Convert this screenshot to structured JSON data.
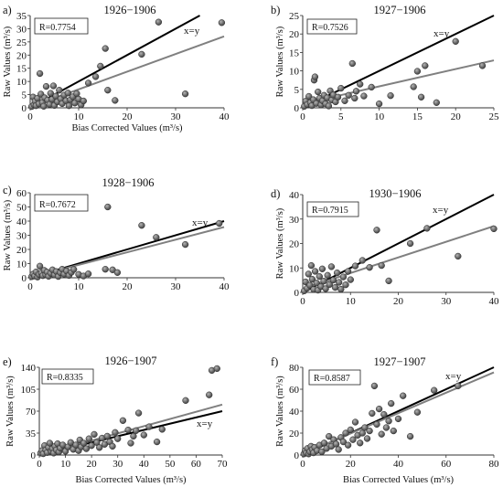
{
  "chart_data": [
    {
      "type": "scatter",
      "panel_label": "a)",
      "title": "1926−1906",
      "xlabel": "Bias Corrected Values (m³/s)",
      "ylabel": "Raw Values (m³/s)",
      "xlim": [
        0,
        40
      ],
      "ylim": [
        0,
        35
      ],
      "xticks": [
        0,
        10,
        20,
        30,
        40
      ],
      "yticks": [
        0,
        5,
        10,
        15,
        20,
        25,
        30,
        35
      ],
      "r_label": "R=0.7754",
      "identity_label": "x=y",
      "trend": {
        "slope": 0.67,
        "intercept": 0.3
      },
      "points": [
        [
          0.3,
          0.5
        ],
        [
          0.6,
          4.1
        ],
        [
          0.8,
          1.2
        ],
        [
          1,
          2.5
        ],
        [
          1.2,
          0.8
        ],
        [
          1.5,
          3.6
        ],
        [
          1.8,
          1.5
        ],
        [
          2,
          13
        ],
        [
          2.2,
          5.2
        ],
        [
          2.5,
          2
        ],
        [
          2.8,
          0.6
        ],
        [
          3,
          3.8
        ],
        [
          3.3,
          8.1
        ],
        [
          3.6,
          2.9
        ],
        [
          4,
          1.3
        ],
        [
          4.2,
          5.5
        ],
        [
          4.5,
          3.2
        ],
        [
          4.8,
          8.3
        ],
        [
          5,
          0.9
        ],
        [
          5.3,
          4.4
        ],
        [
          5.6,
          2.3
        ],
        [
          6,
          6.7
        ],
        [
          6.3,
          3.4
        ],
        [
          6.6,
          1.6
        ],
        [
          7,
          4.8
        ],
        [
          7.4,
          2.7
        ],
        [
          7.8,
          5.6
        ],
        [
          8,
          0.8
        ],
        [
          8.3,
          3.1
        ],
        [
          8.8,
          4.2
        ],
        [
          9.2,
          1.8
        ],
        [
          9.6,
          5.4
        ],
        [
          10,
          3.3
        ],
        [
          10.5,
          1.1
        ],
        [
          11,
          2.6
        ],
        [
          12,
          9.4
        ],
        [
          13.5,
          11.8
        ],
        [
          14.5,
          15.8
        ],
        [
          15.5,
          22.5
        ],
        [
          16,
          6.7
        ],
        [
          17.5,
          2.8
        ],
        [
          23,
          20.3
        ],
        [
          26.5,
          32.5
        ],
        [
          32,
          5.3
        ],
        [
          39.5,
          32.3
        ]
      ]
    },
    {
      "type": "scatter",
      "panel_label": "b)",
      "title": "1927−1906",
      "xlabel": "Bias Corrected Values (m³/s)",
      "ylabel": "Raw Values (m³/s)",
      "xlim": [
        0,
        25
      ],
      "ylim": [
        0,
        25
      ],
      "xticks": [
        0,
        5,
        10,
        15,
        20,
        25
      ],
      "yticks": [
        0,
        5,
        10,
        15,
        20,
        25
      ],
      "r_label": "R=0.7526",
      "identity_label": "x=y",
      "trend": {
        "slope": 0.47,
        "intercept": 1.1
      },
      "points": [
        [
          0.2,
          0.4
        ],
        [
          0.4,
          1.8
        ],
        [
          0.6,
          0.9
        ],
        [
          0.8,
          3.1
        ],
        [
          1,
          1.4
        ],
        [
          1.2,
          0.6
        ],
        [
          1.4,
          2.2
        ],
        [
          1.5,
          7.5
        ],
        [
          1.6,
          8.4
        ],
        [
          1.8,
          1.2
        ],
        [
          2,
          4.3
        ],
        [
          2.2,
          2.6
        ],
        [
          2.4,
          0.8
        ],
        [
          2.6,
          1.9
        ],
        [
          2.8,
          3.4
        ],
        [
          3,
          1.1
        ],
        [
          3.2,
          2.7
        ],
        [
          3.4,
          0.5
        ],
        [
          3.6,
          4.6
        ],
        [
          3.8,
          2.1
        ],
        [
          4,
          3.5
        ],
        [
          4.3,
          1.6
        ],
        [
          4.6,
          2.9
        ],
        [
          5,
          5.3
        ],
        [
          5.5,
          1.9
        ],
        [
          6,
          3.4
        ],
        [
          6.5,
          12
        ],
        [
          6.8,
          2.6
        ],
        [
          7,
          4.5
        ],
        [
          7.5,
          6.4
        ],
        [
          8,
          3.2
        ],
        [
          9,
          5.6
        ],
        [
          10,
          1.1
        ],
        [
          11.5,
          3.3
        ],
        [
          14.5,
          5.7
        ],
        [
          15,
          9.9
        ],
        [
          15.5,
          2.9
        ],
        [
          16,
          11.4
        ],
        [
          17.5,
          1.4
        ],
        [
          20,
          18
        ],
        [
          23.5,
          11.4
        ]
      ]
    },
    {
      "type": "scatter",
      "panel_label": "c)",
      "title": "1928−1906",
      "xlabel": "",
      "ylabel": "Raw Values (m³/s)",
      "xlim": [
        0,
        40
      ],
      "ylim": [
        0,
        60
      ],
      "xticks": [
        0,
        10,
        20,
        30,
        40
      ],
      "yticks": [
        0,
        10,
        20,
        30,
        40,
        50,
        60
      ],
      "r_label": "R=0.7672",
      "identity_label": "x=y",
      "trend": {
        "slope": 0.89,
        "intercept": 0.2
      },
      "points": [
        [
          0.3,
          0.8
        ],
        [
          0.6,
          2.6
        ],
        [
          0.9,
          1.2
        ],
        [
          1.2,
          4.1
        ],
        [
          1.5,
          0.5
        ],
        [
          1.8,
          2.3
        ],
        [
          2,
          8.2
        ],
        [
          2.3,
          3.4
        ],
        [
          2.6,
          1.5
        ],
        [
          2.9,
          5.2
        ],
        [
          3.2,
          2.1
        ],
        [
          3.5,
          4
        ],
        [
          3.8,
          1
        ],
        [
          4.2,
          3.2
        ],
        [
          4.6,
          5.6
        ],
        [
          5,
          2
        ],
        [
          5.4,
          4.4
        ],
        [
          5.8,
          0.9
        ],
        [
          6.2,
          3.6
        ],
        [
          6.6,
          6
        ],
        [
          7,
          2.5
        ],
        [
          7.5,
          4.7
        ],
        [
          8,
          1.6
        ],
        [
          8.5,
          3.8
        ],
        [
          9,
          5.9
        ],
        [
          10,
          2.4
        ],
        [
          11,
          1.2
        ],
        [
          12,
          2.8
        ],
        [
          15.5,
          6
        ],
        [
          16,
          50
        ],
        [
          17,
          5.6
        ],
        [
          18,
          3.7
        ],
        [
          23,
          37
        ],
        [
          26,
          28.5
        ],
        [
          32,
          23.5
        ],
        [
          39,
          38.4
        ]
      ]
    },
    {
      "type": "scatter",
      "panel_label": "d)",
      "title": "1930−1906",
      "xlabel": "",
      "ylabel": "Raw Values (m³/s)",
      "xlim": [
        0,
        40
      ],
      "ylim": [
        0,
        40
      ],
      "xticks": [
        0,
        10,
        20,
        30,
        40
      ],
      "yticks": [
        0,
        10,
        20,
        30,
        40
      ],
      "r_label": "R=0.7915",
      "identity_label": "x=y",
      "trend": {
        "slope": 0.64,
        "intercept": 1.5
      },
      "points": [
        [
          0.3,
          0.6
        ],
        [
          0.6,
          4.3
        ],
        [
          0.9,
          1.7
        ],
        [
          1.2,
          7.5
        ],
        [
          1.5,
          2.9
        ],
        [
          1.8,
          11
        ],
        [
          2,
          5.4
        ],
        [
          2.3,
          1.2
        ],
        [
          2.6,
          8.6
        ],
        [
          2.9,
          3.8
        ],
        [
          3.2,
          0.9
        ],
        [
          3.5,
          6.5
        ],
        [
          3.8,
          2.4
        ],
        [
          4.1,
          9.6
        ],
        [
          4.4,
          4.6
        ],
        [
          4.8,
          1.5
        ],
        [
          5.2,
          7
        ],
        [
          5.6,
          3.2
        ],
        [
          6,
          10.5
        ],
        [
          6.4,
          5
        ],
        [
          6.8,
          2
        ],
        [
          7.2,
          8
        ],
        [
          7.6,
          4.1
        ],
        [
          8,
          1.3
        ],
        [
          8.5,
          6.3
        ],
        [
          9,
          3.1
        ],
        [
          9.5,
          8.6
        ],
        [
          10,
          5.2
        ],
        [
          11,
          10.8
        ],
        [
          12.5,
          13.1
        ],
        [
          14,
          10.2
        ],
        [
          15.5,
          25.5
        ],
        [
          16.5,
          11
        ],
        [
          18,
          4.7
        ],
        [
          22.5,
          20
        ],
        [
          26,
          26.2
        ],
        [
          32.5,
          14.8
        ],
        [
          40,
          26
        ]
      ]
    },
    {
      "type": "scatter",
      "panel_label": "e)",
      "title": "1926−1907",
      "xlabel": "Bias Corrected Values (m³/s)",
      "ylabel": "Raw Values (m³/s)",
      "xlim": [
        0,
        70
      ],
      "ylim": [
        0,
        140
      ],
      "xticks": [
        0,
        10,
        20,
        30,
        40,
        50,
        60,
        70
      ],
      "yticks": [
        0,
        35,
        70,
        105,
        140
      ],
      "r_label": "R=0.8335",
      "identity_label": "x=y",
      "trend": {
        "slope": 1.15,
        "intercept": 0
      },
      "points": [
        [
          0.5,
          3
        ],
        [
          1,
          7
        ],
        [
          1.5,
          2
        ],
        [
          2,
          15
        ],
        [
          2.5,
          8
        ],
        [
          3,
          4
        ],
        [
          3.5,
          12
        ],
        [
          4,
          19
        ],
        [
          4.5,
          6
        ],
        [
          5,
          10
        ],
        [
          5.5,
          3
        ],
        [
          6,
          14
        ],
        [
          6.5,
          8
        ],
        [
          7,
          18
        ],
        [
          7.5,
          5
        ],
        [
          8,
          11
        ],
        [
          9,
          16
        ],
        [
          10,
          6
        ],
        [
          11,
          13
        ],
        [
          12,
          20
        ],
        [
          13,
          9
        ],
        [
          14,
          16
        ],
        [
          15,
          7
        ],
        [
          15.5,
          24
        ],
        [
          16,
          13
        ],
        [
          17,
          19
        ],
        [
          18,
          10
        ],
        [
          19,
          26
        ],
        [
          20,
          15
        ],
        [
          21,
          33
        ],
        [
          22,
          20
        ],
        [
          23,
          12
        ],
        [
          24,
          27
        ],
        [
          25,
          17
        ],
        [
          26,
          30
        ],
        [
          27,
          21
        ],
        [
          28,
          14
        ],
        [
          29,
          36
        ],
        [
          30,
          26
        ],
        [
          32,
          55
        ],
        [
          34,
          40
        ],
        [
          35,
          19
        ],
        [
          36,
          30
        ],
        [
          37,
          39
        ],
        [
          38,
          67
        ],
        [
          40,
          32
        ],
        [
          42,
          45
        ],
        [
          45,
          21
        ],
        [
          47,
          41
        ],
        [
          56,
          87
        ],
        [
          65,
          96
        ],
        [
          66,
          135
        ],
        [
          68,
          138
        ]
      ]
    },
    {
      "type": "scatter",
      "panel_label": "f)",
      "title": "1927−1907",
      "xlabel": "Bias Corrected Values (m³/s)",
      "ylabel": "Raw Values (m³/s)",
      "xlim": [
        0,
        80
      ],
      "ylim": [
        0,
        80
      ],
      "xticks": [
        0,
        20,
        40,
        60,
        80
      ],
      "yticks": [
        0,
        20,
        40,
        60,
        80
      ],
      "r_label": "R=0.8587",
      "identity_label": "x=y",
      "trend": {
        "slope": 0.93,
        "intercept": 1
      },
      "points": [
        [
          0.5,
          1
        ],
        [
          1,
          4
        ],
        [
          1.5,
          2
        ],
        [
          2,
          6
        ],
        [
          2.5,
          1
        ],
        [
          3,
          3
        ],
        [
          3.5,
          8
        ],
        [
          4,
          5
        ],
        [
          4.5,
          2
        ],
        [
          5,
          7
        ],
        [
          6,
          4
        ],
        [
          7,
          9
        ],
        [
          8,
          3
        ],
        [
          9,
          11
        ],
        [
          10,
          6
        ],
        [
          11,
          17
        ],
        [
          12,
          8
        ],
        [
          13,
          14
        ],
        [
          14,
          10
        ],
        [
          15,
          5
        ],
        [
          16,
          16
        ],
        [
          17,
          12
        ],
        [
          18,
          20
        ],
        [
          19,
          9
        ],
        [
          20,
          23
        ],
        [
          21,
          14
        ],
        [
          22,
          30
        ],
        [
          23,
          18
        ],
        [
          24,
          11
        ],
        [
          25,
          20
        ],
        [
          26,
          25
        ],
        [
          27,
          15
        ],
        [
          28,
          22
        ],
        [
          29,
          38
        ],
        [
          30,
          63
        ],
        [
          31,
          28
        ],
        [
          32,
          42
        ],
        [
          33,
          19
        ],
        [
          34,
          37
        ],
        [
          35,
          25
        ],
        [
          36,
          31
        ],
        [
          37,
          47
        ],
        [
          38,
          22
        ],
        [
          40,
          33
        ],
        [
          42,
          54
        ],
        [
          45,
          17
        ],
        [
          48,
          39
        ],
        [
          55,
          59
        ],
        [
          65,
          63
        ]
      ]
    }
  ]
}
